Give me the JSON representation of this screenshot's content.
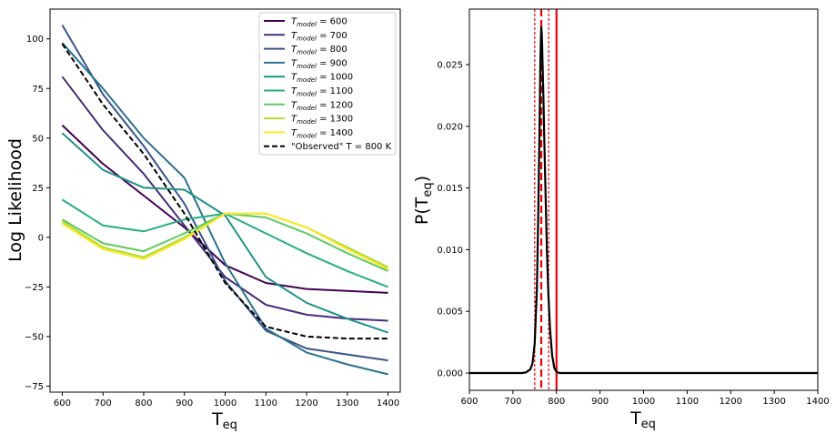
{
  "chart_data": [
    {
      "type": "line",
      "title": "",
      "xlabel": "T",
      "xlabel_sub": "eq",
      "ylabel": "Log Likelihood",
      "xlim": [
        570,
        1430
      ],
      "ylim": [
        -78,
        115
      ],
      "x": [
        600,
        700,
        800,
        900,
        1000,
        1100,
        1200,
        1300,
        1400
      ],
      "xticks": [
        "600",
        "700",
        "800",
        "900",
        "1000",
        "1100",
        "1200",
        "1300",
        "1400"
      ],
      "xtick_values": [
        600,
        700,
        800,
        900,
        1000,
        1100,
        1200,
        1300,
        1400
      ],
      "yticks": [
        "100",
        "75",
        "50",
        "25",
        "0",
        "−25",
        "−50",
        "−75"
      ],
      "ytick_values": [
        100,
        75,
        50,
        25,
        0,
        -25,
        -50,
        -75
      ],
      "legend_position": "top-right",
      "series": [
        {
          "name": "600",
          "label_prefix": "T",
          "label_sub": "model",
          "label_suffix": " = 600",
          "color": "#440154",
          "dashed": false,
          "values": [
            56.5,
            37,
            21,
            5,
            -14,
            -23,
            -26,
            -27,
            -28
          ]
        },
        {
          "name": "700",
          "label_prefix": "T",
          "label_sub": "model",
          "label_suffix": " = 700",
          "color": "#472d7b",
          "dashed": false,
          "values": [
            81,
            54,
            32,
            6,
            -20,
            -34,
            -39,
            -41,
            -42
          ]
        },
        {
          "name": "800",
          "label_prefix": "T",
          "label_sub": "model",
          "label_suffix": " = 800",
          "color": "#3b528b",
          "dashed": false,
          "values": [
            107,
            72,
            46,
            17,
            -22,
            -47,
            -56,
            -59,
            -62
          ]
        },
        {
          "name": "900",
          "label_prefix": "T",
          "label_sub": "model",
          "label_suffix": " = 900",
          "color": "#2c728e",
          "dashed": false,
          "values": [
            98,
            75,
            50,
            30,
            -13,
            -46,
            -58,
            -64,
            -69
          ]
        },
        {
          "name": "1000",
          "label_prefix": "T",
          "label_sub": "model",
          "label_suffix": " = 1000",
          "color": "#21918c",
          "dashed": false,
          "values": [
            52.5,
            34,
            25,
            24,
            11,
            -20,
            -33,
            -41,
            -48
          ]
        },
        {
          "name": "1100",
          "label_prefix": "T",
          "label_sub": "model",
          "label_suffix": " = 1100",
          "color": "#28ae80",
          "dashed": false,
          "values": [
            19,
            6,
            3,
            9,
            12,
            2,
            -8,
            -17,
            -25
          ]
        },
        {
          "name": "1200",
          "label_prefix": "T",
          "label_sub": "model",
          "label_suffix": " = 1200",
          "color": "#5ec962",
          "dashed": false,
          "values": [
            9,
            -3,
            -7,
            2,
            12,
            10,
            2,
            -8,
            -17
          ]
        },
        {
          "name": "1300",
          "label_prefix": "T",
          "label_sub": "model",
          "label_suffix": " = 1300",
          "color": "#addc30",
          "dashed": false,
          "values": [
            8,
            -5,
            -10,
            0,
            12,
            12,
            5,
            -5,
            -15
          ]
        },
        {
          "name": "1400",
          "label_prefix": "T",
          "label_sub": "model",
          "label_suffix": " = 1400",
          "color": "#fde725",
          "dashed": false,
          "values": [
            7,
            -6,
            -11,
            -1,
            12,
            12,
            5,
            -6,
            -16
          ]
        },
        {
          "name": "\"Observed\" T = 800 K",
          "label_prefix": "",
          "label_sub": "",
          "label_suffix": "\"Observed\" T = 800 K",
          "color": "#000000",
          "dashed": true,
          "values": [
            97.5,
            67,
            42,
            12,
            -23,
            -45,
            -50,
            -51,
            -51
          ]
        }
      ]
    },
    {
      "type": "line",
      "title": "",
      "xlabel": "T",
      "xlabel_sub": "eq",
      "ylabel": "P(T",
      "ylabel_sub": "eq",
      "ylabel_close": ")",
      "xlim": [
        600,
        1400
      ],
      "ylim": [
        -0.0014,
        0.0295
      ],
      "xticks": [
        "600",
        "700",
        "800",
        "900",
        "1000",
        "1100",
        "1200",
        "1300",
        "1400"
      ],
      "xtick_values": [
        600,
        700,
        800,
        900,
        1000,
        1100,
        1200,
        1300,
        1400
      ],
      "yticks": [
        "0.000",
        "0.005",
        "0.010",
        "0.015",
        "0.020",
        "0.025"
      ],
      "ytick_values": [
        0,
        0.005,
        0.01,
        0.015,
        0.02,
        0.025
      ],
      "posterior": {
        "color": "#000000",
        "x": [
          600,
          720,
          730,
          740,
          745,
          750,
          755,
          758,
          761,
          763,
          764,
          765,
          766,
          767,
          768,
          770,
          772,
          775,
          778,
          781,
          785,
          790,
          795,
          800,
          805,
          810,
          820,
          1400
        ],
        "values": [
          0,
          0,
          5e-05,
          0.0003,
          0.0008,
          0.0024,
          0.0068,
          0.0125,
          0.0198,
          0.025,
          0.0268,
          0.0281,
          0.0276,
          0.0265,
          0.0252,
          0.0223,
          0.019,
          0.0143,
          0.01,
          0.0066,
          0.0036,
          0.0014,
          0.0004,
          0.0001,
          2e-05,
          0,
          0,
          0
        ]
      },
      "vlines": [
        {
          "name": "lower-bound",
          "x": 750,
          "style": "dotted",
          "color": "#e8000b"
        },
        {
          "name": "estimate",
          "x": 765,
          "style": "dashed",
          "color": "#e8000b"
        },
        {
          "name": "upper-bound",
          "x": 782,
          "style": "dotted",
          "color": "#e8000b"
        },
        {
          "name": "true-value",
          "x": 800,
          "style": "solid",
          "color": "#e8000b"
        }
      ]
    }
  ]
}
